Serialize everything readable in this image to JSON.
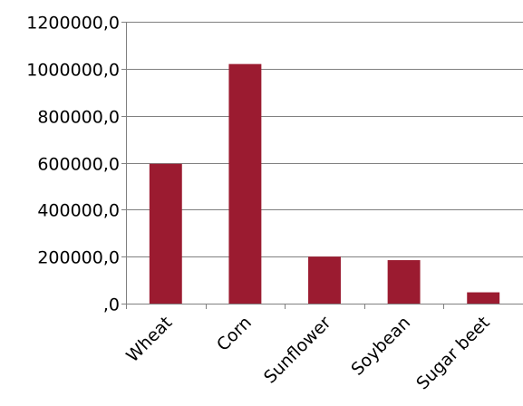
{
  "chart_data": {
    "type": "bar",
    "categories": [
      "Wheat",
      "Corn",
      "Sunflower",
      "Soybean",
      "Sugar beet"
    ],
    "values": [
      595000,
      1020000,
      200000,
      185000,
      48000
    ],
    "ylim": [
      0,
      1200000
    ],
    "yticks": [
      0,
      200000,
      400000,
      600000,
      800000,
      1000000,
      1200000
    ],
    "ytick_labels": [
      ",0",
      "200000,0",
      "400000,0",
      "600000,0",
      "800000,0",
      "1000000,0",
      "1200000,0"
    ],
    "grid": true,
    "legend": "none",
    "title": "",
    "xlabel": "",
    "ylabel": "",
    "colors": {
      "bar": "#9b1b30",
      "grid": "#808080",
      "axis": "#808080"
    }
  }
}
